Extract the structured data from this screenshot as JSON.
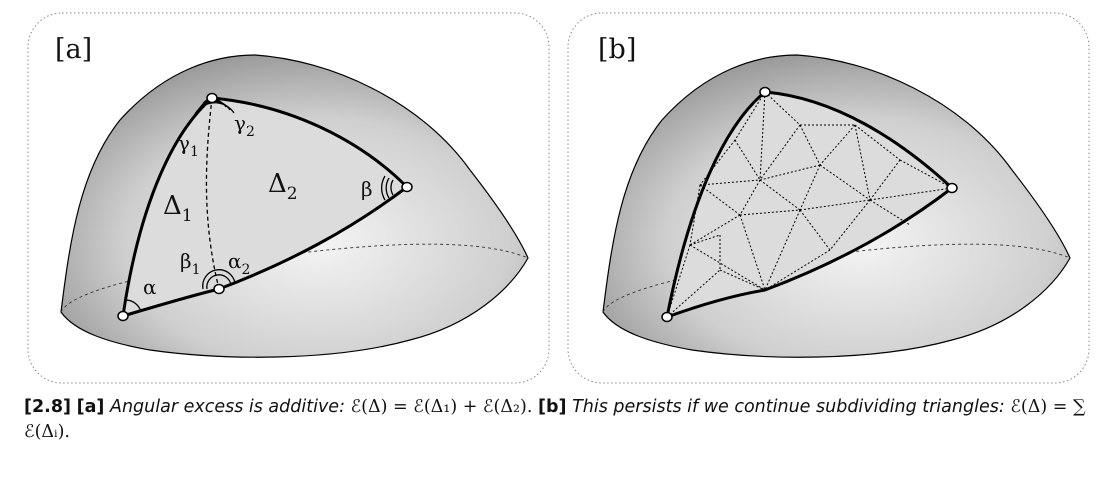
{
  "panel_a": {
    "tag": "[a]",
    "labels": {
      "alpha": "α",
      "beta": "β",
      "gamma1": "γ",
      "gamma1_sub": "1",
      "gamma2": "γ",
      "gamma2_sub": "2",
      "beta1": "β",
      "beta1_sub": "1",
      "alpha2": "α",
      "alpha2_sub": "2",
      "delta1": "Δ",
      "delta1_sub": "1",
      "delta2": "Δ",
      "delta2_sub": "2"
    }
  },
  "panel_b": {
    "tag": "[b]"
  },
  "caption": {
    "figure_number": "[2.8]",
    "part_a_tag": "[a]",
    "part_a_text": "Angular excess is additive:",
    "part_a_formula": "ℰ(Δ) = ℰ(Δ₁) + ℰ(Δ₂).",
    "part_b_tag": "[b]",
    "part_b_text": "This persists if we continue subdividing triangles:",
    "part_b_formula": "ℰ(Δ) = ∑ ℰ(Δᵢ)."
  },
  "colors": {
    "surface_light": "#f1f1f1",
    "surface_dark": "#8a8a8a",
    "triangle_fill": "#dcdcdc",
    "stroke": "#000000"
  }
}
